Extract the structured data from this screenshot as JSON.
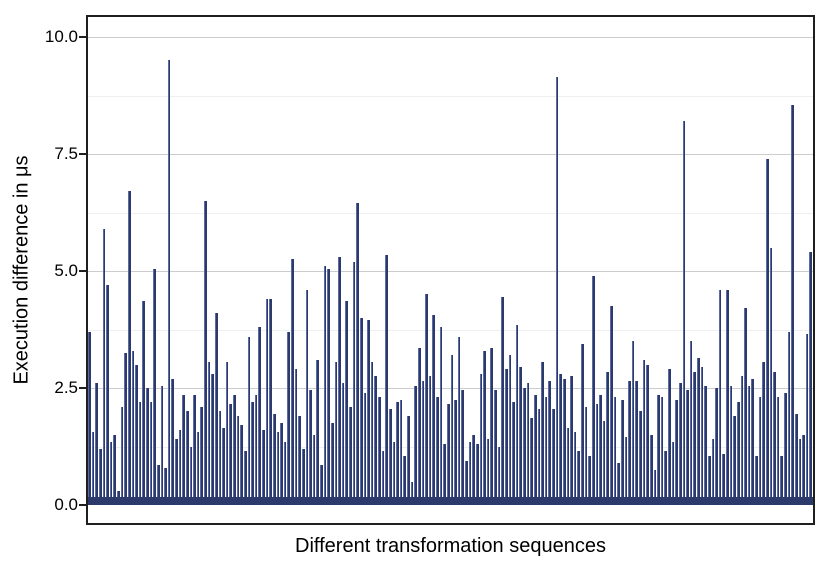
{
  "chart_data": {
    "type": "bar",
    "title": "",
    "xlabel": "Different transformation sequences",
    "ylabel": "Execution difference in μs",
    "ylim": [
      0,
      10.45
    ],
    "yticks": [
      0.0,
      2.5,
      5.0,
      7.5,
      10.0
    ],
    "ytick_labels": [
      "0.0",
      "2.5",
      "5.0",
      "7.5",
      "10.0"
    ],
    "minor_gridlines": [
      1.25,
      3.75,
      6.25,
      8.75
    ],
    "grid": "horizontal major + faint minor, no x ticks or x tick labels",
    "legend": "none",
    "n_bars": 200,
    "values": [
      3.7,
      1.55,
      2.6,
      1.2,
      5.9,
      4.7,
      1.35,
      1.5,
      0.3,
      2.1,
      3.25,
      6.7,
      3.3,
      3.0,
      2.2,
      4.35,
      2.5,
      2.2,
      5.05,
      0.85,
      2.55,
      0.8,
      9.5,
      2.7,
      1.4,
      1.6,
      2.35,
      2.0,
      1.25,
      2.35,
      1.55,
      2.1,
      6.5,
      3.05,
      2.8,
      4.1,
      2.0,
      1.65,
      3.05,
      2.15,
      2.35,
      1.9,
      1.7,
      1.15,
      3.6,
      2.2,
      2.35,
      3.8,
      1.6,
      4.4,
      4.4,
      1.95,
      1.55,
      1.75,
      1.35,
      3.7,
      5.25,
      2.9,
      1.9,
      1.2,
      4.6,
      2.45,
      1.5,
      3.1,
      0.85,
      5.1,
      5.05,
      1.75,
      3.05,
      5.3,
      2.6,
      4.35,
      2.1,
      5.2,
      6.45,
      4.0,
      2.4,
      3.95,
      3.05,
      2.75,
      2.3,
      1.15,
      5.35,
      2.05,
      1.35,
      2.2,
      2.25,
      1.05,
      1.9,
      0.5,
      2.55,
      3.35,
      2.65,
      4.5,
      2.75,
      4.05,
      2.3,
      3.8,
      1.3,
      2.15,
      3.2,
      2.25,
      3.6,
      2.45,
      0.95,
      1.35,
      1.5,
      1.3,
      2.8,
      3.3,
      1.4,
      3.35,
      2.45,
      1.25,
      4.45,
      2.9,
      3.2,
      2.2,
      3.85,
      2.95,
      2.5,
      2.6,
      1.85,
      2.35,
      2.05,
      3.05,
      2.3,
      2.65,
      2.05,
      9.15,
      2.8,
      2.7,
      1.65,
      2.75,
      1.55,
      1.15,
      3.45,
      2.1,
      1.05,
      4.9,
      2.15,
      2.35,
      1.8,
      2.85,
      4.25,
      2.3,
      0.9,
      2.25,
      1.45,
      2.65,
      3.5,
      2.65,
      2.0,
      3.1,
      3.0,
      1.5,
      0.75,
      2.35,
      2.3,
      1.15,
      2.9,
      1.35,
      2.25,
      2.6,
      8.2,
      2.45,
      3.5,
      2.85,
      3.15,
      2.95,
      2.55,
      1.05,
      1.4,
      2.5,
      4.6,
      1.1,
      4.6,
      2.55,
      1.9,
      2.2,
      2.75,
      4.2,
      2.55,
      2.7,
      1.05,
      2.3,
      3.05,
      7.4,
      5.5,
      2.85,
      2.3,
      1.05,
      2.4,
      3.7,
      8.55,
      1.95,
      1.4,
      1.5,
      3.65,
      5.4
    ],
    "colors": {
      "bar_fill": "#2b3a6b",
      "bar_edge": "#5c6aa6",
      "baseline_band": "#2b3a6b",
      "grid_major": "#cccccc",
      "grid_minor": "#efefef",
      "frame": "#1f1f1f",
      "text": "#000000"
    }
  }
}
